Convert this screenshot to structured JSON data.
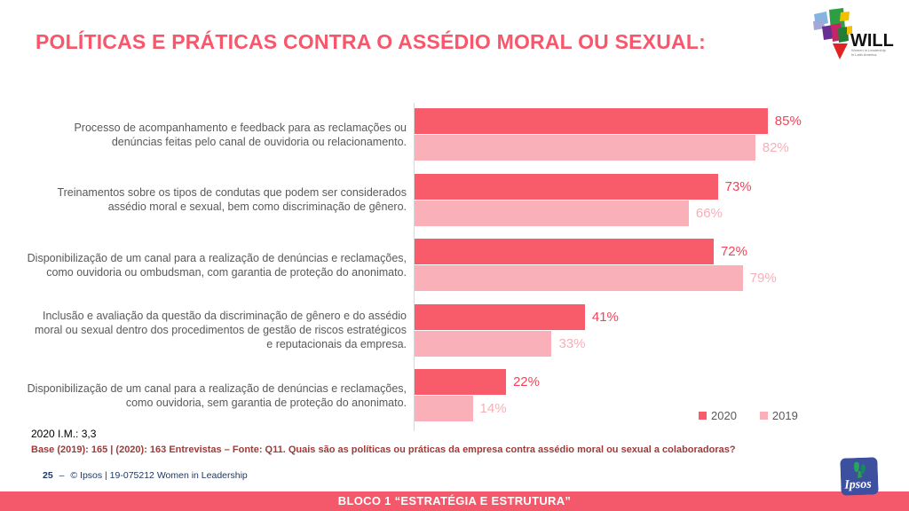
{
  "slide": {
    "title": "POLÍTICAS E PRÁTICAS CONTRA O ASSÉDIO MORAL OU SEXUAL:"
  },
  "chart_data": {
    "type": "bar",
    "orientation": "horizontal",
    "categories": [
      "Processo de acompanhamento e feedback para as reclamações ou denúncias feitas pelo canal de ouvidoria ou relacionamento.",
      "Treinamentos sobre os tipos de condutas que podem ser considerados assédio moral e sexual, bem como discriminação de gênero.",
      "Disponibilização de um canal para a realização de denúncias e reclamações, como ouvidoria ou ombudsman, com garantia de proteção do anonimato.",
      "Inclusão e avaliação da questão da discriminação de gênero e do assédio moral ou sexual dentro dos procedimentos de gestão de riscos estratégicos e reputacionais da empresa.",
      "Disponibilização de um canal para a realização de denúncias e reclamações, como ouvidoria, sem garantia de proteção do anonimato."
    ],
    "series": [
      {
        "name": "2020",
        "color": "#f85b6a",
        "label_color": "#f4435a",
        "values": [
          85,
          73,
          72,
          41,
          22
        ]
      },
      {
        "name": "2019",
        "color": "#fab0b8",
        "label_color": "#f9aeb6",
        "values": [
          82,
          66,
          79,
          33,
          14
        ]
      }
    ],
    "value_suffix": "%",
    "xlim": [
      0,
      100
    ],
    "grid": false,
    "legend_position": "bottom-right"
  },
  "notes": {
    "im_note": "2020 I.M.: 3,3",
    "base_note": "Base (2019): 165 | (2020): 163 Entrevistas – Fonte: Q11. Quais são as políticas ou práticas da empresa contra assédio moral ou sexual a colaboradoras?"
  },
  "footer": {
    "page_number": "25",
    "separator": "–",
    "credit": "© Ipsos | 19-075212 Women in Leadership",
    "banner": "BLOCO 1 “ESTRATÉGIA E ESTRUTURA”"
  },
  "logos": {
    "will": {
      "text": "WILL",
      "tagline_line1": "Women in Leadership",
      "tagline_line2": "in Latin America"
    },
    "ipsos": {
      "text": "Ipsos"
    }
  }
}
